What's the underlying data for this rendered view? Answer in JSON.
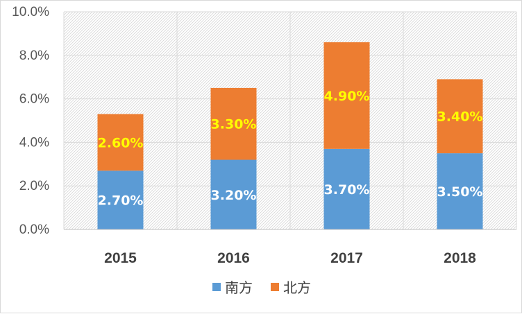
{
  "chart_data": {
    "type": "bar",
    "stacked": true,
    "categories": [
      "2015",
      "2016",
      "2017",
      "2018"
    ],
    "series": [
      {
        "name": "南方",
        "values": [
          2.7,
          3.2,
          3.7,
          3.5
        ],
        "labels": [
          "2.70%",
          "3.20%",
          "3.70%",
          "3.50%"
        ],
        "color": "#5b9bd5",
        "label_color": "#ffffff"
      },
      {
        "name": "北方",
        "values": [
          2.6,
          3.3,
          4.9,
          3.4
        ],
        "labels": [
          "2.60%",
          "3.30%",
          "4.90%",
          "3.40%"
        ],
        "color": "#ed7d31",
        "label_color": "#ffff00"
      }
    ],
    "ylim": [
      0,
      10
    ],
    "yticks": [
      "0.0%",
      "2.0%",
      "4.0%",
      "6.0%",
      "8.0%",
      "10.0%"
    ],
    "grid": true,
    "legend_position": "bottom",
    "plot_background": "hatched",
    "title": "",
    "xlabel": "",
    "ylabel": ""
  }
}
